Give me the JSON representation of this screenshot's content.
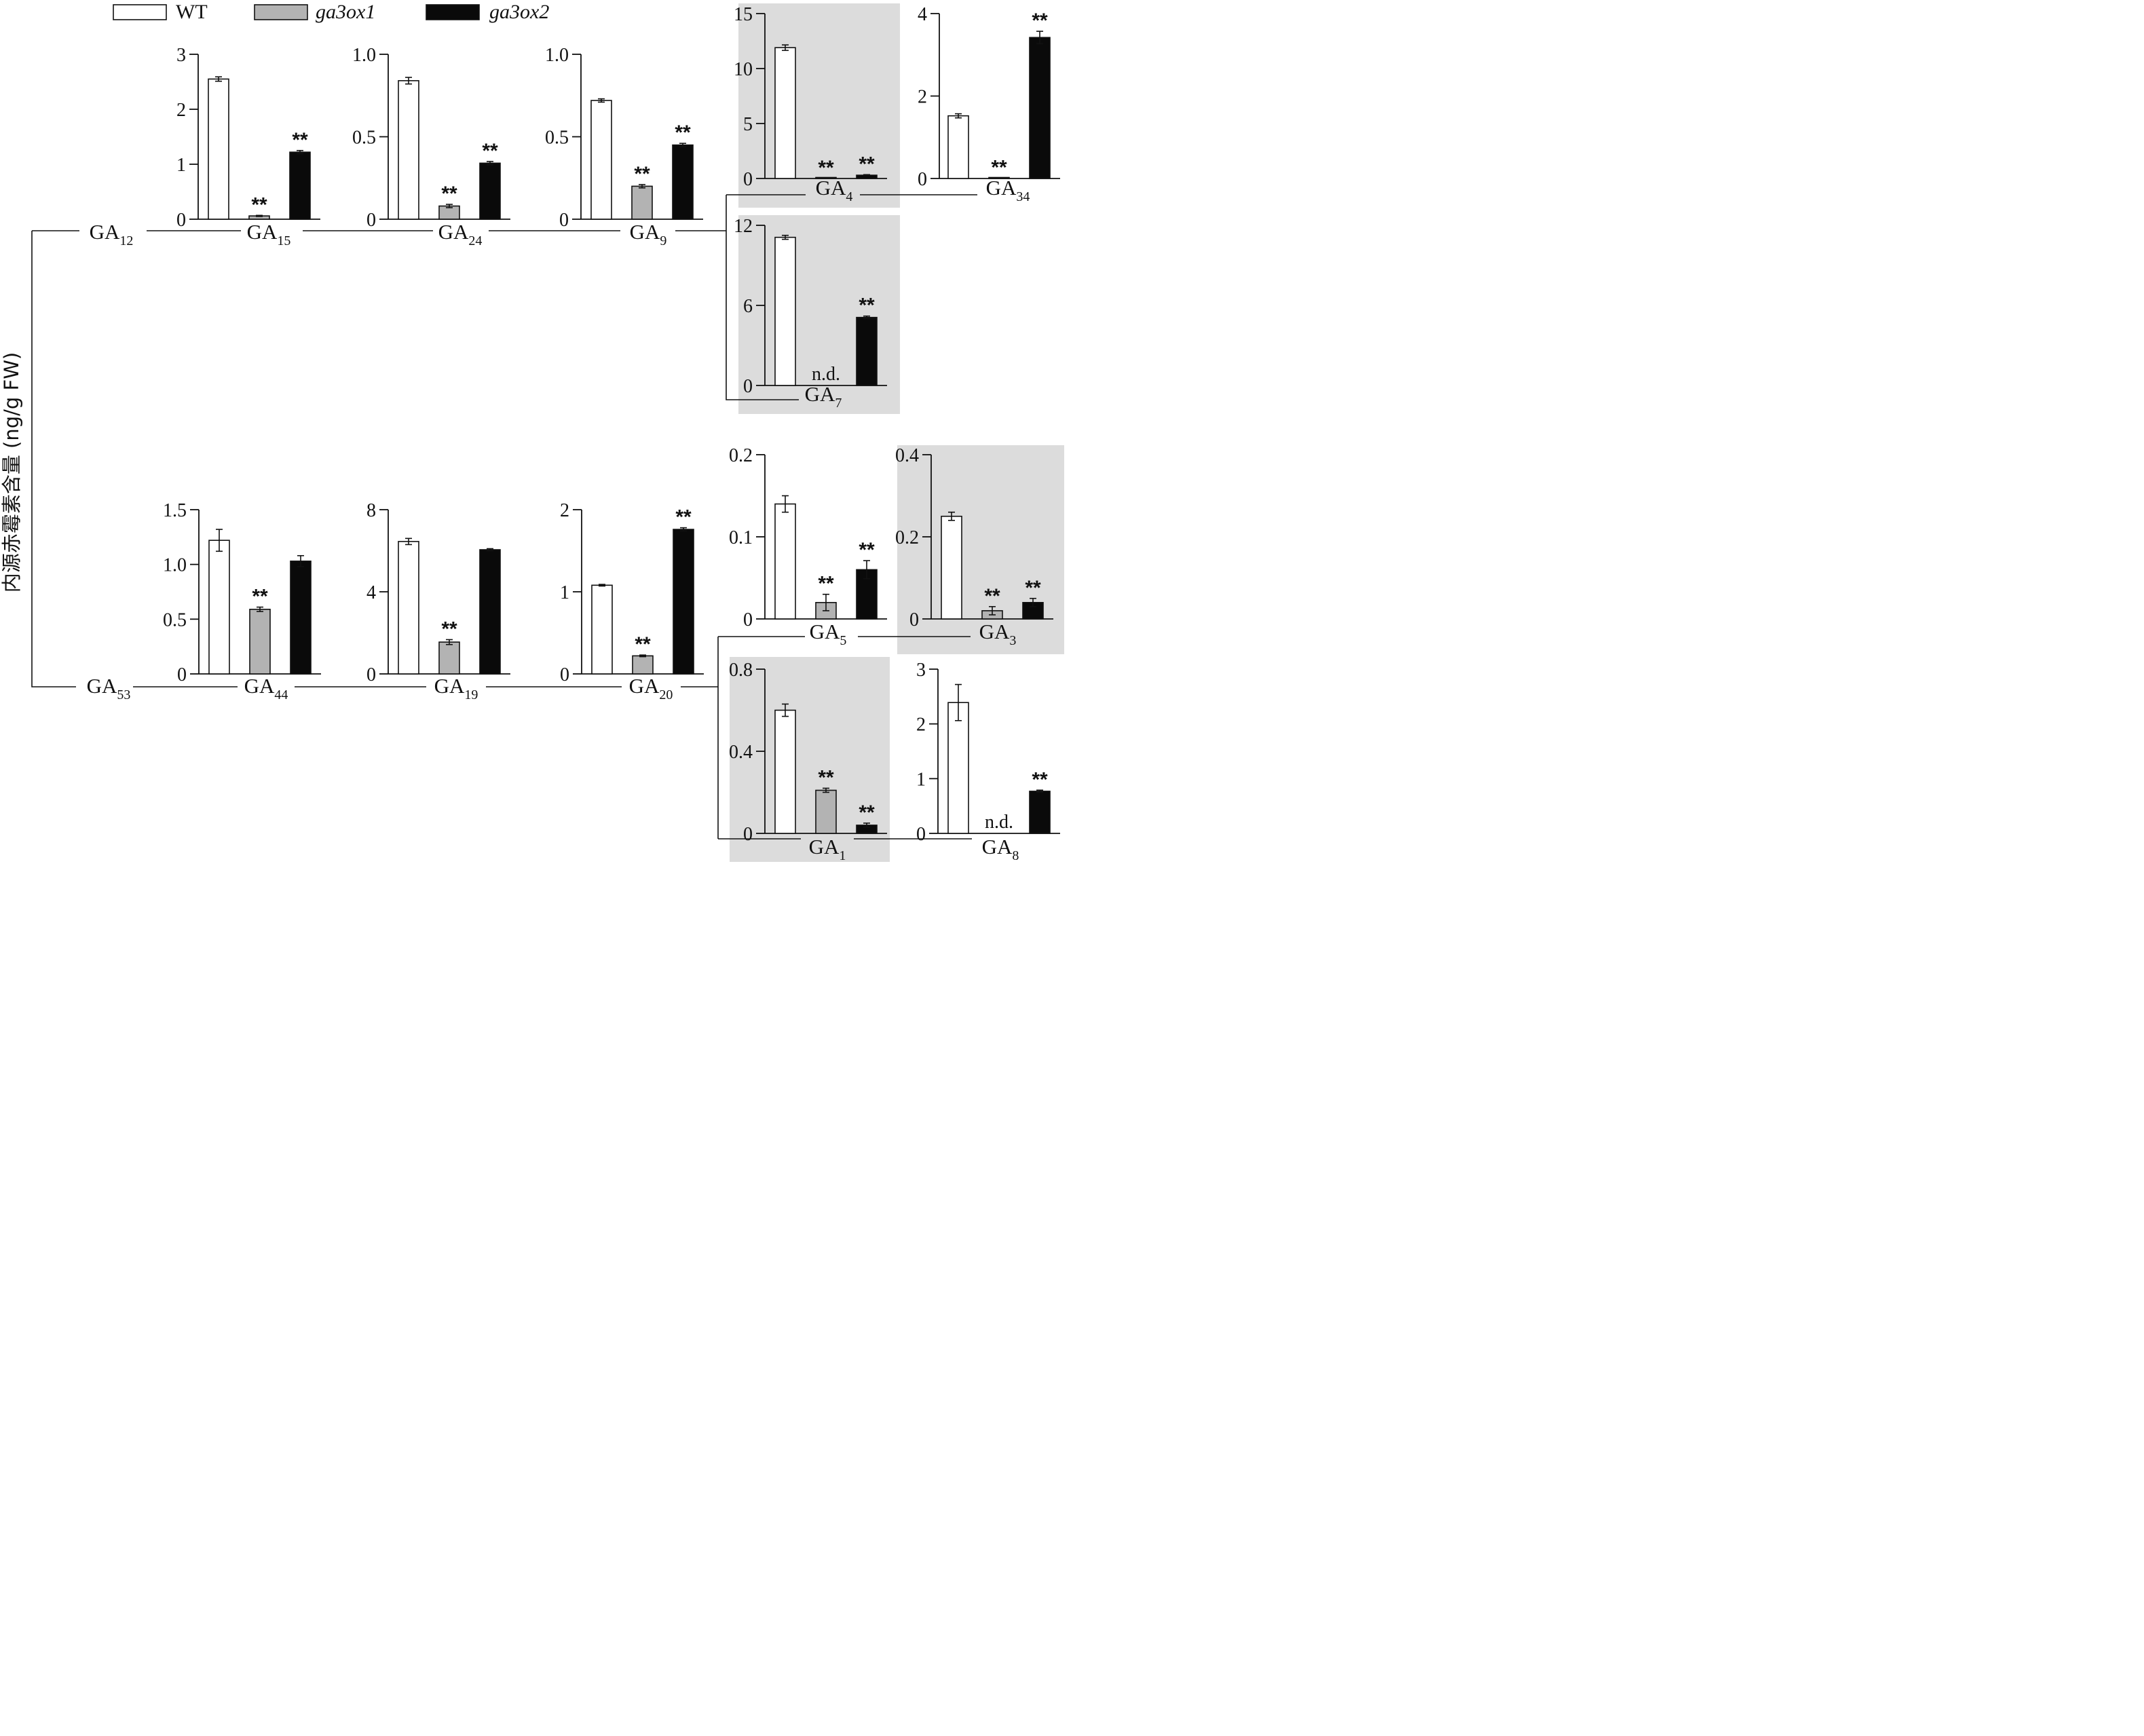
{
  "ylabel": "内源赤霉素含量 (ng/g FW)",
  "legend": [
    {
      "label": "WT",
      "color": "#ffffff",
      "italic": false
    },
    {
      "label": "ga3ox1",
      "color": "#b3b3b3",
      "italic": true
    },
    {
      "label": "ga3ox2",
      "color": "#0a0a0a",
      "italic": true
    }
  ],
  "colors": {
    "WT": "#ffffff",
    "ga3ox1": "#b3b3b3",
    "ga3ox2": "#0a0a0a",
    "highlight": "#dcdcdc"
  },
  "compounds": [
    {
      "base": "GA",
      "sub": "12"
    },
    {
      "base": "GA",
      "sub": "53"
    }
  ],
  "chart_data": [
    {
      "type": "bar",
      "compound": {
        "base": "GA",
        "sub": "15"
      },
      "ylim": [
        0,
        3
      ],
      "ticks": [
        "0",
        "1",
        "2",
        "3"
      ],
      "highlight": false,
      "series": [
        {
          "name": "WT",
          "value": 2.55,
          "err": 0.04
        },
        {
          "name": "ga3ox1",
          "value": 0.06,
          "err": 0.01,
          "mark": "**"
        },
        {
          "name": "ga3ox2",
          "value": 1.22,
          "err": 0.03,
          "mark": "**"
        }
      ]
    },
    {
      "type": "bar",
      "compound": {
        "base": "GA",
        "sub": "24"
      },
      "ylim": [
        0,
        1.0
      ],
      "ticks": [
        "0",
        "0.5",
        "1.0"
      ],
      "highlight": false,
      "series": [
        {
          "name": "WT",
          "value": 0.84,
          "err": 0.02
        },
        {
          "name": "ga3ox1",
          "value": 0.08,
          "err": 0.01,
          "mark": "**"
        },
        {
          "name": "ga3ox2",
          "value": 0.34,
          "err": 0.01,
          "mark": "**"
        }
      ]
    },
    {
      "type": "bar",
      "compound": {
        "base": "GA",
        "sub": "9"
      },
      "ylim": [
        0,
        1.0
      ],
      "ticks": [
        "0",
        "0.5",
        "1.0"
      ],
      "highlight": false,
      "series": [
        {
          "name": "WT",
          "value": 0.72,
          "err": 0.01
        },
        {
          "name": "ga3ox1",
          "value": 0.2,
          "err": 0.01,
          "mark": "**"
        },
        {
          "name": "ga3ox2",
          "value": 0.45,
          "err": 0.01,
          "mark": "**"
        }
      ]
    },
    {
      "type": "bar",
      "compound": {
        "base": "GA",
        "sub": "4"
      },
      "ylim": [
        0,
        15
      ],
      "ticks": [
        "0",
        "5",
        "10",
        "15"
      ],
      "highlight": true,
      "series": [
        {
          "name": "WT",
          "value": 11.9,
          "err": 0.25
        },
        {
          "name": "ga3ox1",
          "value": 0.0,
          "err": 0,
          "mark": "**"
        },
        {
          "name": "ga3ox2",
          "value": 0.3,
          "err": 0.05,
          "mark": "**"
        }
      ]
    },
    {
      "type": "bar",
      "compound": {
        "base": "GA",
        "sub": "34"
      },
      "ylim": [
        0,
        4
      ],
      "ticks": [
        "0",
        "2",
        "4"
      ],
      "highlight": false,
      "series": [
        {
          "name": "WT",
          "value": 1.52,
          "err": 0.05
        },
        {
          "name": "ga3ox1",
          "value": 0.01,
          "err": 0,
          "mark": "**"
        },
        {
          "name": "ga3ox2",
          "value": 3.42,
          "err": 0.15,
          "mark": "**"
        }
      ]
    },
    {
      "type": "bar",
      "compound": {
        "base": "GA",
        "sub": "7"
      },
      "ylim": [
        0,
        12
      ],
      "ticks": [
        "0",
        "6",
        "12"
      ],
      "highlight": true,
      "series": [
        {
          "name": "WT",
          "value": 11.1,
          "err": 0.15
        },
        {
          "name": "ga3ox1",
          "value": null,
          "mark": "n.d."
        },
        {
          "name": "ga3ox2",
          "value": 5.1,
          "err": 0.1,
          "mark": "**"
        }
      ]
    },
    {
      "type": "bar",
      "compound": {
        "base": "GA",
        "sub": "44"
      },
      "ylim": [
        0,
        1.5
      ],
      "ticks": [
        "0",
        "0.5",
        "1.0",
        "1.5"
      ],
      "highlight": false,
      "series": [
        {
          "name": "WT",
          "value": 1.22,
          "err": 0.1
        },
        {
          "name": "ga3ox1",
          "value": 0.59,
          "err": 0.02,
          "mark": "**"
        },
        {
          "name": "ga3ox2",
          "value": 1.03,
          "err": 0.05
        }
      ]
    },
    {
      "type": "bar",
      "compound": {
        "base": "GA",
        "sub": "19"
      },
      "ylim": [
        0,
        8
      ],
      "ticks": [
        "0",
        "4",
        "8"
      ],
      "highlight": false,
      "series": [
        {
          "name": "WT",
          "value": 6.45,
          "err": 0.15
        },
        {
          "name": "ga3ox1",
          "value": 1.55,
          "err": 0.12,
          "mark": "**"
        },
        {
          "name": "ga3ox2",
          "value": 6.05,
          "err": 0.05
        }
      ]
    },
    {
      "type": "bar",
      "compound": {
        "base": "GA",
        "sub": "20"
      },
      "ylim": [
        0,
        2
      ],
      "ticks": [
        "0",
        "1",
        "2"
      ],
      "highlight": false,
      "series": [
        {
          "name": "WT",
          "value": 1.08,
          "err": 0.01
        },
        {
          "name": "ga3ox1",
          "value": 0.22,
          "err": 0.01,
          "mark": "**"
        },
        {
          "name": "ga3ox2",
          "value": 1.76,
          "err": 0.02,
          "mark": "**"
        }
      ]
    },
    {
      "type": "bar",
      "compound": {
        "base": "GA",
        "sub": "5"
      },
      "ylim": [
        0,
        0.2
      ],
      "ticks": [
        "0",
        "0.1",
        "0.2"
      ],
      "highlight": false,
      "series": [
        {
          "name": "WT",
          "value": 0.14,
          "err": 0.01
        },
        {
          "name": "ga3ox1",
          "value": 0.02,
          "err": 0.01,
          "mark": "**"
        },
        {
          "name": "ga3ox2",
          "value": 0.06,
          "err": 0.011,
          "mark": "**"
        }
      ]
    },
    {
      "type": "bar",
      "compound": {
        "base": "GA",
        "sub": "3"
      },
      "ylim": [
        0,
        0.4
      ],
      "ticks": [
        "0",
        "0.2",
        "0.4"
      ],
      "highlight": true,
      "series": [
        {
          "name": "WT",
          "value": 0.25,
          "err": 0.01
        },
        {
          "name": "ga3ox1",
          "value": 0.02,
          "err": 0.01,
          "mark": "**"
        },
        {
          "name": "ga3ox2",
          "value": 0.04,
          "err": 0.01,
          "mark": "**"
        }
      ]
    },
    {
      "type": "bar",
      "compound": {
        "base": "GA",
        "sub": "1"
      },
      "ylim": [
        0,
        0.8
      ],
      "ticks": [
        "0",
        "0.4",
        "0.8"
      ],
      "highlight": true,
      "series": [
        {
          "name": "WT",
          "value": 0.6,
          "err": 0.03
        },
        {
          "name": "ga3ox1",
          "value": 0.21,
          "err": 0.01,
          "mark": "**"
        },
        {
          "name": "ga3ox2",
          "value": 0.04,
          "err": 0.01,
          "mark": "**"
        }
      ]
    },
    {
      "type": "bar",
      "compound": {
        "base": "GA",
        "sub": "8"
      },
      "ylim": [
        0,
        3
      ],
      "ticks": [
        "0",
        "1",
        "2",
        "3"
      ],
      "highlight": false,
      "series": [
        {
          "name": "WT",
          "value": 2.39,
          "err": 0.33
        },
        {
          "name": "ga3ox1",
          "value": null,
          "mark": "n.d."
        },
        {
          "name": "ga3ox2",
          "value": 0.77,
          "err": 0.02,
          "mark": "**"
        }
      ]
    }
  ]
}
